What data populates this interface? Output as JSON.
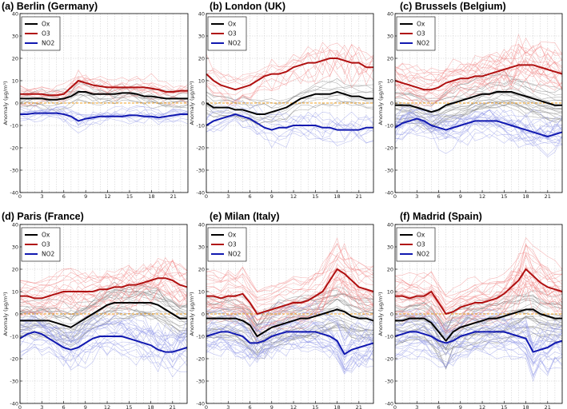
{
  "chart_data": {
    "type": "line",
    "panels": [
      {
        "title": "(a) Berlin (Germany)",
        "ylabel": "Anomaly (μg/m³)",
        "ylim": [
          -40,
          40
        ],
        "yticks": [
          -40,
          -30,
          -20,
          -10,
          0,
          10,
          20,
          30,
          40
        ],
        "xticks": [
          0,
          3,
          6,
          9,
          12,
          15,
          18,
          21
        ],
        "xlim": [
          0,
          23
        ],
        "legend": [
          {
            "name": "Ox",
            "color": "#000000"
          },
          {
            "name": "O3",
            "color": "#b01010"
          },
          {
            "name": "NO2",
            "color": "#1018b0"
          }
        ],
        "series": [
          {
            "name": "Ox",
            "values": [
              2,
              2,
              2,
              2,
              1.5,
              1.5,
              2,
              3,
              5,
              5,
              4,
              4,
              4,
              4,
              4.5,
              4.5,
              4,
              3,
              3,
              2.5,
              2,
              2,
              2,
              2
            ]
          },
          {
            "name": "O3",
            "values": [
              4,
              4,
              4,
              4,
              3.5,
              3.5,
              4,
              7,
              10,
              9,
              8,
              7.5,
              7,
              7,
              7,
              7,
              7,
              7,
              6.5,
              6,
              5,
              5,
              5.5,
              5.5
            ]
          },
          {
            "name": "NO2",
            "values": [
              -5,
              -5,
              -4.5,
              -4.5,
              -4.5,
              -4.5,
              -5,
              -6,
              -8,
              -7,
              -6.5,
              -6,
              -6,
              -6,
              -6,
              -5.5,
              -5.5,
              -6,
              -6,
              -6.5,
              -6,
              -5.5,
              -5,
              -5
            ]
          }
        ]
      },
      {
        "title": "(b) London (UK)",
        "ylabel": "Anomaly (μg/m³)",
        "ylim": [
          -40,
          40
        ],
        "yticks": [
          -40,
          -30,
          -20,
          -10,
          0,
          10,
          20,
          30,
          40
        ],
        "xticks": [
          0,
          3,
          6,
          9,
          12,
          15,
          18,
          21
        ],
        "xlim": [
          0,
          23
        ],
        "legend": [
          {
            "name": "Ox",
            "color": "#000000"
          },
          {
            "name": "O3",
            "color": "#b01010"
          },
          {
            "name": "NO2",
            "color": "#1018b0"
          }
        ],
        "series": [
          {
            "name": "Ox",
            "values": [
              0,
              -2,
              -2,
              -2,
              -3,
              -3,
              -4,
              -5,
              -5,
              -4,
              -3,
              -2,
              0,
              2,
              3,
              4,
              4,
              4,
              5,
              4,
              3,
              3,
              2,
              2
            ]
          },
          {
            "name": "O3",
            "values": [
              13,
              10,
              8,
              7,
              6,
              7,
              8,
              10,
              12,
              13,
              13,
              14,
              16,
              17,
              18,
              18,
              19,
              20,
              20,
              19,
              18,
              18,
              16,
              16
            ]
          },
          {
            "name": "NO2",
            "values": [
              -10,
              -8,
              -7,
              -6,
              -5,
              -6,
              -7,
              -9,
              -11,
              -12,
              -11,
              -11,
              -10,
              -10,
              -10,
              -10,
              -11,
              -11,
              -12,
              -12,
              -12,
              -12,
              -11,
              -11
            ]
          }
        ]
      },
      {
        "title": "(c) Brussels (Belgium)",
        "ylabel": "Anomaly (μg/m³)",
        "ylim": [
          -40,
          40
        ],
        "yticks": [
          -40,
          -30,
          -20,
          -10,
          0,
          10,
          20,
          30,
          40
        ],
        "xticks": [
          0,
          3,
          6,
          9,
          12,
          15,
          18,
          21
        ],
        "xlim": [
          0,
          23
        ],
        "legend": [
          {
            "name": "Ox",
            "color": "#000000"
          },
          {
            "name": "O3",
            "color": "#b01010"
          },
          {
            "name": "NO2",
            "color": "#1018b0"
          }
        ],
        "series": [
          {
            "name": "Ox",
            "values": [
              -1,
              -1,
              -1,
              -2,
              -3,
              -4,
              -3,
              -1,
              0,
              1,
              2,
              3,
              4,
              4,
              5,
              5,
              5,
              4,
              3,
              2,
              1,
              0,
              -1,
              -1
            ]
          },
          {
            "name": "O3",
            "values": [
              10,
              9,
              8,
              7,
              6,
              6,
              7,
              9,
              10,
              11,
              11,
              12,
              12,
              13,
              14,
              15,
              16,
              17,
              17,
              17,
              16,
              15,
              14,
              13
            ]
          },
          {
            "name": "NO2",
            "values": [
              -11,
              -9,
              -8,
              -7,
              -8,
              -10,
              -11,
              -12,
              -11,
              -10,
              -9,
              -8,
              -8,
              -8,
              -8,
              -9,
              -10,
              -11,
              -12,
              -13,
              -14,
              -15,
              -14,
              -13
            ]
          }
        ]
      },
      {
        "title": "(d) Paris (France)",
        "ylabel": "Anomaly (μg/m³)",
        "ylim": [
          -40,
          40
        ],
        "yticks": [
          -40,
          -30,
          -20,
          -10,
          0,
          10,
          20,
          30,
          40
        ],
        "xticks": [
          0,
          3,
          6,
          9,
          12,
          15,
          18,
          21
        ],
        "xlim": [
          0,
          23
        ],
        "legend": [
          {
            "name": "Ox",
            "color": "#000000"
          },
          {
            "name": "O3",
            "color": "#b01010"
          },
          {
            "name": "NO2",
            "color": "#1018b0"
          }
        ],
        "series": [
          {
            "name": "Ox",
            "values": [
              -3,
              -3,
              -3,
              -3,
              -3,
              -4,
              -5,
              -6,
              -4,
              -2,
              0,
              2,
              4,
              5,
              5,
              5,
              5,
              5,
              5,
              4,
              2,
              0,
              -2,
              -2
            ]
          },
          {
            "name": "O3",
            "values": [
              8,
              8,
              7,
              7,
              8,
              9,
              10,
              10,
              10,
              10,
              10,
              11,
              11,
              12,
              12,
              13,
              13,
              14,
              15,
              16,
              16,
              15,
              13,
              12
            ]
          },
          {
            "name": "NO2",
            "values": [
              -11,
              -9,
              -8,
              -9,
              -11,
              -13,
              -15,
              -16,
              -15,
              -13,
              -11,
              -10,
              -10,
              -10,
              -10,
              -11,
              -12,
              -13,
              -14,
              -16,
              -17,
              -17,
              -16,
              -15
            ]
          }
        ]
      },
      {
        "title": "(e) Milan (Italy)",
        "ylabel": "Anomaly (μg/m³)",
        "ylim": [
          -40,
          40
        ],
        "yticks": [
          -40,
          -30,
          -20,
          -10,
          0,
          10,
          20,
          30,
          40
        ],
        "xticks": [
          0,
          3,
          6,
          9,
          12,
          15,
          18,
          21
        ],
        "xlim": [
          0,
          23
        ],
        "legend": [
          {
            "name": "Ox",
            "color": "#000000"
          },
          {
            "name": "O3",
            "color": "#b01010"
          },
          {
            "name": "NO2",
            "color": "#1018b0"
          }
        ],
        "series": [
          {
            "name": "Ox",
            "values": [
              -2,
              -2,
              -2,
              -2,
              -2,
              -3,
              -5,
              -10,
              -8,
              -6,
              -5,
              -4,
              -3,
              -2,
              -2,
              -1,
              0,
              1,
              2,
              1,
              -1,
              -2,
              -2,
              -3
            ]
          },
          {
            "name": "O3",
            "values": [
              8,
              8,
              7,
              8,
              8,
              9,
              5,
              0,
              1,
              2,
              3,
              4,
              5,
              5,
              6,
              8,
              10,
              15,
              20,
              18,
              15,
              12,
              11,
              10
            ]
          },
          {
            "name": "NO2",
            "values": [
              -10,
              -9,
              -8,
              -8,
              -9,
              -10,
              -13,
              -13,
              -12,
              -10,
              -9,
              -8,
              -8,
              -8,
              -8,
              -8,
              -9,
              -10,
              -12,
              -18,
              -16,
              -15,
              -14,
              -13
            ]
          }
        ]
      },
      {
        "title": "(f) Madrid (Spain)",
        "ylabel": "Anomaly (μg/m³)",
        "ylim": [
          -40,
          40
        ],
        "yticks": [
          -40,
          -30,
          -20,
          -10,
          0,
          10,
          20,
          30,
          40
        ],
        "xticks": [
          0,
          3,
          6,
          9,
          12,
          15,
          18,
          21
        ],
        "xlim": [
          0,
          23
        ],
        "legend": [
          {
            "name": "Ox",
            "color": "#000000"
          },
          {
            "name": "O3",
            "color": "#b01010"
          },
          {
            "name": "NO2",
            "color": "#1018b0"
          }
        ],
        "series": [
          {
            "name": "Ox",
            "values": [
              -3,
              -3,
              -2,
              -2,
              -2,
              -4,
              -8,
              -12,
              -8,
              -6,
              -5,
              -4,
              -3,
              -2,
              -2,
              -1,
              0,
              1,
              2,
              2,
              0,
              -1,
              -2,
              -2
            ]
          },
          {
            "name": "O3",
            "values": [
              8,
              8,
              7,
              8,
              8,
              10,
              5,
              0,
              1,
              3,
              4,
              5,
              5,
              6,
              7,
              9,
              12,
              15,
              20,
              17,
              14,
              12,
              11,
              10
            ]
          },
          {
            "name": "NO2",
            "values": [
              -10,
              -9,
              -8,
              -8,
              -9,
              -10,
              -12,
              -13,
              -12,
              -10,
              -9,
              -8,
              -8,
              -8,
              -8,
              -8,
              -9,
              -10,
              -11,
              -17,
              -16,
              -15,
              -13,
              -12
            ]
          }
        ]
      }
    ]
  },
  "colors": {
    "Ox": "#000000",
    "O3": "#b01010",
    "NO2": "#1018b0",
    "Ox_faint": "#777777",
    "O3_faint": "#f08080",
    "NO2_faint": "#8c93e8",
    "zero_line": "#f0a020",
    "grid": "#c8c8c8"
  }
}
